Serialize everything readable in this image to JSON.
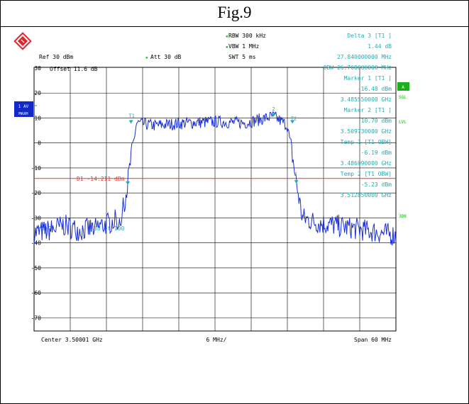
{
  "figure": {
    "caption": "Fig.9"
  },
  "colors": {
    "trace": "#1a2fd6",
    "annotation": "#22aeb3",
    "ref_line": "#e23b2e",
    "grid": "#000000",
    "side_button": "#1428c8",
    "green_tag": "#19b01c",
    "logo": "#e0242b"
  },
  "header": {
    "rbw": "RBW 300 kHz",
    "vbw": "VBW 1 MHz",
    "swt": "SWT 5 ms",
    "ref": "Ref  30 dBm",
    "att": "Att  30 dB"
  },
  "marker_panel": [
    {
      "text": "Delta 3 [T1 ]"
    },
    {
      "text": "1.44 dB"
    },
    {
      "text": "27.840000000 MHz"
    },
    {
      "text": "OBW 26.760000000 MHz"
    },
    {
      "text": "Marker 1 [T1 ]"
    },
    {
      "text": "-16.48 dBm"
    },
    {
      "text": "3.485550000 GHz"
    },
    {
      "text": "Marker 2 [T1 ]"
    },
    {
      "text": "10.70 dBm"
    },
    {
      "text": "3.509730000 GHz"
    },
    {
      "text": "Temp 1 [T1 OBW]"
    },
    {
      "text": "-6.19 dBm"
    },
    {
      "text": "3.486090000 GHz"
    },
    {
      "text": "Temp 2 [T1 OBW]"
    },
    {
      "text": "-5.23 dBm"
    },
    {
      "text": "3.512850000 GHz"
    }
  ],
  "overlay": {
    "offset": "Offset  11.6 dB",
    "ref_line_label": "D1 -14.211 dBm",
    "swp": "SWP",
    "swp_count": "38 of 100",
    "marker_labels": [
      "T1",
      "2",
      "T2",
      "3"
    ]
  },
  "side_tags": {
    "left_top": "1 AV",
    "left_bottom": "MAXH",
    "right_a": "A",
    "right_sgl": "SGL",
    "right_lvl": "LVL",
    "right_3db": "3DB"
  },
  "footer": {
    "center": "Center  3.50001 GHz",
    "div": "6 MHz/",
    "span": "Span  60 MHz"
  },
  "chart_data": {
    "type": "line",
    "xlabel": "",
    "ylabel": "",
    "ylim": [
      -75,
      30
    ],
    "y_ticks": [
      "30",
      "20",
      "10",
      "0",
      "-10",
      "-20",
      "-30",
      "-40",
      "-50",
      "-60",
      "-70"
    ],
    "x_range_MHz": [
      3470.01,
      3530.01
    ],
    "grid": true,
    "reference_line_dBm": -14.211,
    "series": [
      {
        "x": [
          3470.01,
          3472.5,
          3475,
          3477.5,
          3480,
          3482.5,
          3484.5,
          3485.5,
          3486.1,
          3487,
          3490,
          3495,
          3500,
          3505,
          3509.73,
          3512,
          3512.85,
          3513.5,
          3514.5,
          3517,
          3520,
          3525,
          3530.01
        ],
        "y": [
          -36,
          -35,
          -33,
          -35,
          -34,
          -32,
          -30,
          -16.5,
          -6.2,
          8,
          7,
          8,
          8.5,
          8,
          10.7,
          7,
          -5.2,
          -16,
          -30,
          -32,
          -33,
          -35,
          -37
        ]
      }
    ]
  }
}
